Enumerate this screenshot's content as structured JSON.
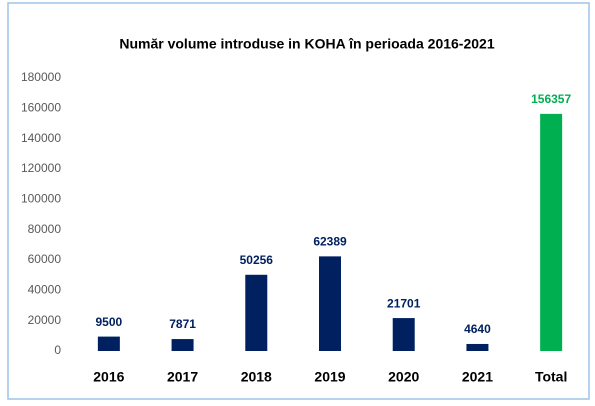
{
  "chart_data": {
    "type": "bar",
    "title": "Număr volume introduse in KOHA în perioada 2016-2021",
    "categories": [
      "2016",
      "2017",
      "2018",
      "2019",
      "2020",
      "2021",
      "Total"
    ],
    "values": [
      9500,
      7871,
      50256,
      62389,
      21701,
      4640,
      156357
    ],
    "colors": [
      "#002060",
      "#002060",
      "#002060",
      "#002060",
      "#002060",
      "#002060",
      "#00b050"
    ],
    "ylim": [
      0,
      180000
    ],
    "yticks": [
      0,
      20000,
      40000,
      60000,
      80000,
      100000,
      120000,
      140000,
      160000,
      180000
    ],
    "grid": false
  }
}
